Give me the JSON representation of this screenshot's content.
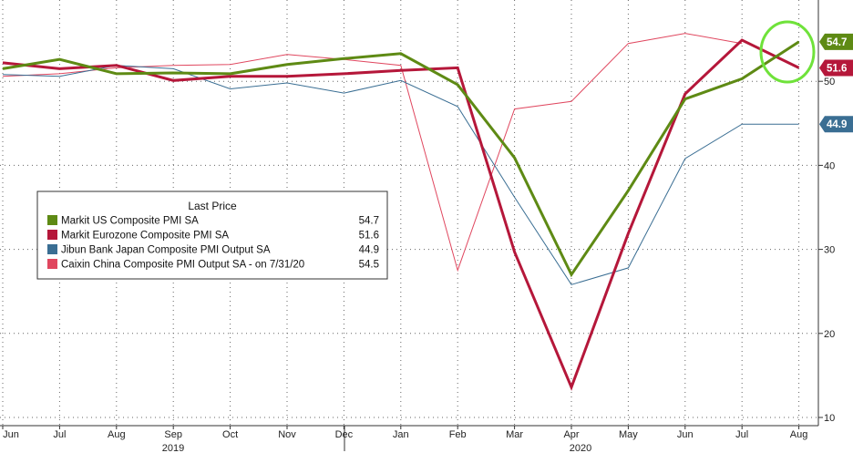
{
  "chart_data": {
    "type": "line",
    "title": "",
    "categories": [
      "Jun",
      "Jul",
      "Aug",
      "Sep",
      "Oct",
      "Nov",
      "Dec",
      "Jan",
      "Feb",
      "Mar",
      "Apr",
      "May",
      "Jun",
      "Jul",
      "Aug"
    ],
    "year_labels": [
      "2019",
      "2020"
    ],
    "ylim": [
      9.5,
      57.5
    ],
    "yticks": [
      10,
      20,
      30,
      40,
      50
    ],
    "grid": true,
    "legend": {
      "title": "Last Price",
      "position": "middle-left"
    },
    "series": [
      {
        "name": "Markit US Composite PMI SA",
        "legend_value": "54.7",
        "tag": "54.7",
        "color": "#5e8a14",
        "width": 3,
        "values": [
          51.5,
          52.6,
          50.9,
          51.0,
          50.9,
          52.0,
          52.7,
          53.3,
          49.6,
          40.9,
          27.0,
          37.0,
          47.9,
          50.3,
          54.7
        ]
      },
      {
        "name": "Markit Eurozone Composite PMI SA",
        "legend_value": "51.6",
        "tag": "51.6",
        "color": "#b5173a",
        "width": 3,
        "values": [
          52.2,
          51.5,
          51.9,
          50.1,
          50.6,
          50.6,
          50.9,
          51.3,
          51.6,
          29.7,
          13.6,
          31.9,
          48.5,
          54.9,
          51.6
        ]
      },
      {
        "name": "Jibun Bank Japan Composite PMI Output SA",
        "legend_value": "44.9",
        "tag": "44.9",
        "color": "#3a6e93",
        "width": 1,
        "values": [
          50.8,
          50.6,
          51.9,
          51.5,
          49.1,
          49.8,
          48.6,
          50.1,
          47.0,
          36.2,
          25.8,
          27.8,
          40.8,
          44.9,
          44.9
        ]
      },
      {
        "name": "Caixin China Composite PMI Output SA - on 7/31/20",
        "legend_value": "54.5",
        "tag": "",
        "color": "#e0475f",
        "width": 1,
        "values": [
          50.6,
          50.9,
          51.6,
          51.9,
          52.0,
          53.2,
          52.6,
          51.9,
          27.5,
          46.7,
          47.6,
          54.5,
          55.7,
          54.5,
          null
        ]
      }
    ]
  }
}
